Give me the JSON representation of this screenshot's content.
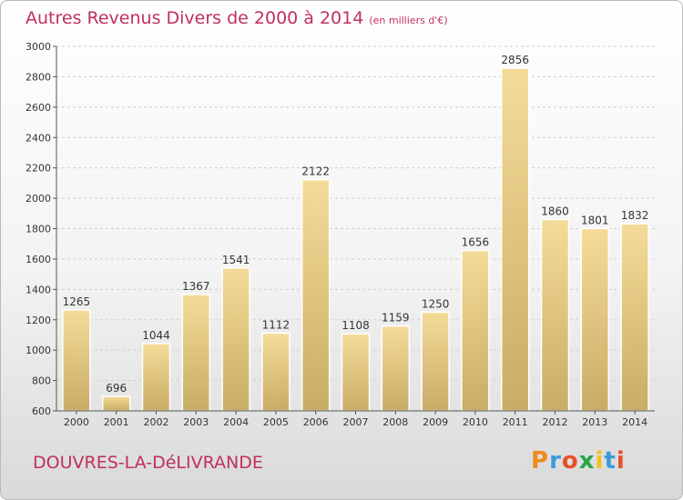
{
  "header": {
    "title": "Autres Revenus Divers de 2000 à 2014",
    "unit": "(en milliers d'€)"
  },
  "footer": {
    "commune": "DOUVRES-LA-DéLIVRANDE",
    "brand": "Proxiti"
  },
  "colors": {
    "title": "#c0305a",
    "bar_light": "#f4dc98",
    "bar_dark": "#c9ac66",
    "axis": "#444444",
    "grid": "#cccccc"
  },
  "chart_data": {
    "type": "bar",
    "title": "Autres Revenus Divers de 2000 à 2014",
    "subtitle": "(en milliers d'€)",
    "categories": [
      "2000",
      "2001",
      "2002",
      "2003",
      "2004",
      "2005",
      "2006",
      "2007",
      "2008",
      "2009",
      "2010",
      "2011",
      "2012",
      "2013",
      "2014"
    ],
    "values": [
      1265,
      696,
      1044,
      1367,
      1541,
      1112,
      2122,
      1108,
      1159,
      1250,
      1656,
      2856,
      1860,
      1801,
      1832
    ],
    "ylim": [
      600,
      3000
    ],
    "yticks": [
      600,
      800,
      1000,
      1200,
      1400,
      1600,
      1800,
      2000,
      2200,
      2400,
      2600,
      2800,
      3000
    ],
    "grid": "horizontal dashed",
    "legend": "none"
  }
}
